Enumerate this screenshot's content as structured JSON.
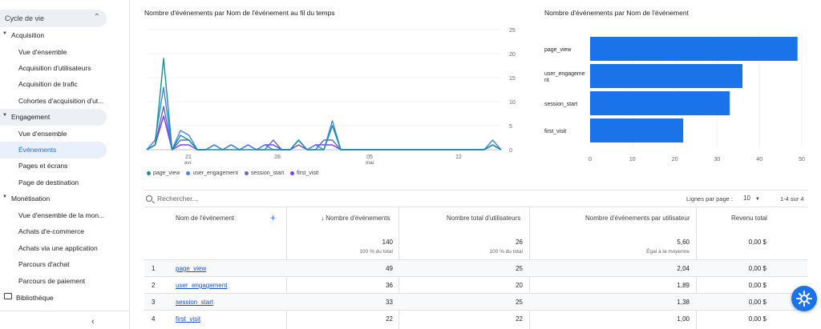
{
  "sidebar": {
    "header": "Cycle de vie",
    "items": [
      {
        "label": "Acquisition",
        "type": "section"
      },
      {
        "label": "Vue d'ensemble",
        "type": "item"
      },
      {
        "label": "Acquisition d'utilisateurs",
        "type": "item"
      },
      {
        "label": "Acquisition de trafic",
        "type": "item"
      },
      {
        "label": "Cohortes d'acquisition d'ut...",
        "type": "item"
      },
      {
        "label": "Engagement",
        "type": "section-open"
      },
      {
        "label": "Vue d'ensemble",
        "type": "item"
      },
      {
        "label": "Événements",
        "type": "item-active"
      },
      {
        "label": "Pages et écrans",
        "type": "item"
      },
      {
        "label": "Page de destination",
        "type": "item"
      },
      {
        "label": "Monétisation",
        "type": "section"
      },
      {
        "label": "Vue d'ensemble de la mon...",
        "type": "item"
      },
      {
        "label": "Achats d'e-commerce",
        "type": "item"
      },
      {
        "label": "Achats via une application",
        "type": "item"
      },
      {
        "label": "Parcours d'achat",
        "type": "item"
      },
      {
        "label": "Parcours de paiement",
        "type": "item"
      }
    ],
    "library": "Bibliothèque"
  },
  "line_chart_title": "Nombre d'événements par Nom de l'événement au fil du temps",
  "bar_chart_title": "Nombre d'événements par Nom de l'événement",
  "chart_data": [
    {
      "type": "line",
      "title": "Nombre d'événements par Nom de l'événement au fil du temps",
      "x_tick_labels": [
        "21",
        "avr.",
        "28",
        "05",
        "mai",
        "12"
      ],
      "y_ticks": [
        0,
        5,
        10,
        15,
        20,
        25
      ],
      "ylim": [
        0,
        25
      ],
      "y_axis_position": "right",
      "legend_position": "bottom-left",
      "colors": {
        "page_view": "#12939a",
        "user_engagement": "#4285f4",
        "session_start": "#5c6bc0",
        "first_visit": "#7e3ff2"
      },
      "series": [
        {
          "name": "page_view",
          "values": [
            0,
            1,
            19,
            0,
            3,
            2,
            0,
            0,
            0,
            0,
            0,
            0,
            0,
            0,
            0,
            0,
            0,
            0,
            2,
            0,
            0,
            0,
            5,
            0,
            0,
            0,
            0,
            0,
            0,
            0,
            0,
            0,
            0,
            0,
            0,
            0,
            0,
            0,
            0,
            0,
            0,
            1,
            0
          ]
        },
        {
          "name": "user_engagement",
          "values": [
            0,
            2,
            13,
            0,
            4,
            3,
            0,
            0,
            1,
            0,
            1,
            0,
            1,
            0,
            1,
            0,
            0,
            0,
            2,
            0,
            1,
            0,
            6,
            0,
            0,
            0,
            0,
            0,
            0,
            0,
            0,
            0,
            0,
            0,
            0,
            0,
            0,
            0,
            0,
            0,
            0,
            2,
            0
          ]
        },
        {
          "name": "session_start",
          "values": [
            0,
            1,
            9,
            0,
            2,
            2,
            0,
            0,
            1,
            0,
            1,
            0,
            1,
            0,
            0,
            2,
            0,
            0,
            2,
            0,
            0,
            2,
            2,
            0,
            0,
            0,
            0,
            0,
            0,
            0,
            0,
            0,
            0,
            0,
            0,
            0,
            0,
            0,
            0,
            0,
            0,
            1,
            0
          ]
        },
        {
          "name": "first_visit",
          "values": [
            0,
            1,
            7,
            0,
            1,
            1,
            0,
            0,
            1,
            0,
            1,
            0,
            1,
            0,
            1,
            1,
            0,
            0,
            1,
            0,
            1,
            1,
            1,
            0,
            0,
            0,
            0,
            0,
            0,
            0,
            0,
            0,
            0,
            0,
            0,
            0,
            0,
            0,
            0,
            0,
            0,
            1,
            0
          ]
        }
      ]
    },
    {
      "type": "bar",
      "orientation": "horizontal",
      "title": "Nombre d'événements par Nom de l'événement",
      "categories": [
        "page_view",
        "user_engagement",
        "session_start",
        "first_visit"
      ],
      "values": [
        49,
        36,
        33,
        22
      ],
      "x_ticks": [
        0,
        10,
        20,
        30,
        40,
        50
      ],
      "xlim": [
        0,
        50
      ],
      "color": "#1a73e8"
    }
  ],
  "table": {
    "search_placeholder": "Rechercher...",
    "rows_per_page_label": "Lignes par page :",
    "rows_per_page_value": "10",
    "range": "1-4 sur 4",
    "columns": [
      "Nom de l'événement",
      "Nombre d'événements",
      "Nombre total d'utilisateurs",
      "Nombre d'événements par utilisateur",
      "Revenu total"
    ],
    "sort_indicator": "↓",
    "totals": {
      "events": "140",
      "events_sub": "100 % du total",
      "users": "26",
      "users_sub": "100 % du total",
      "per_user": "5,60",
      "per_user_sub": "Égal à la moyenne",
      "revenue": "0,00 $"
    },
    "rows": [
      {
        "idx": "1",
        "name": "page_view",
        "events": "49",
        "users": "25",
        "per_user": "2,04",
        "revenue": "0,00 $"
      },
      {
        "idx": "2",
        "name": "user_engagement",
        "events": "36",
        "users": "20",
        "per_user": "1,89",
        "revenue": "0,00 $"
      },
      {
        "idx": "3",
        "name": "session_start",
        "events": "33",
        "users": "25",
        "per_user": "1,38",
        "revenue": "0,00 $"
      },
      {
        "idx": "4",
        "name": "first_visit",
        "events": "22",
        "users": "22",
        "per_user": "1,00",
        "revenue": "0,00 $"
      }
    ]
  },
  "icons": {
    "fab": "insights-icon",
    "collapse": "chevron-left-icon"
  }
}
